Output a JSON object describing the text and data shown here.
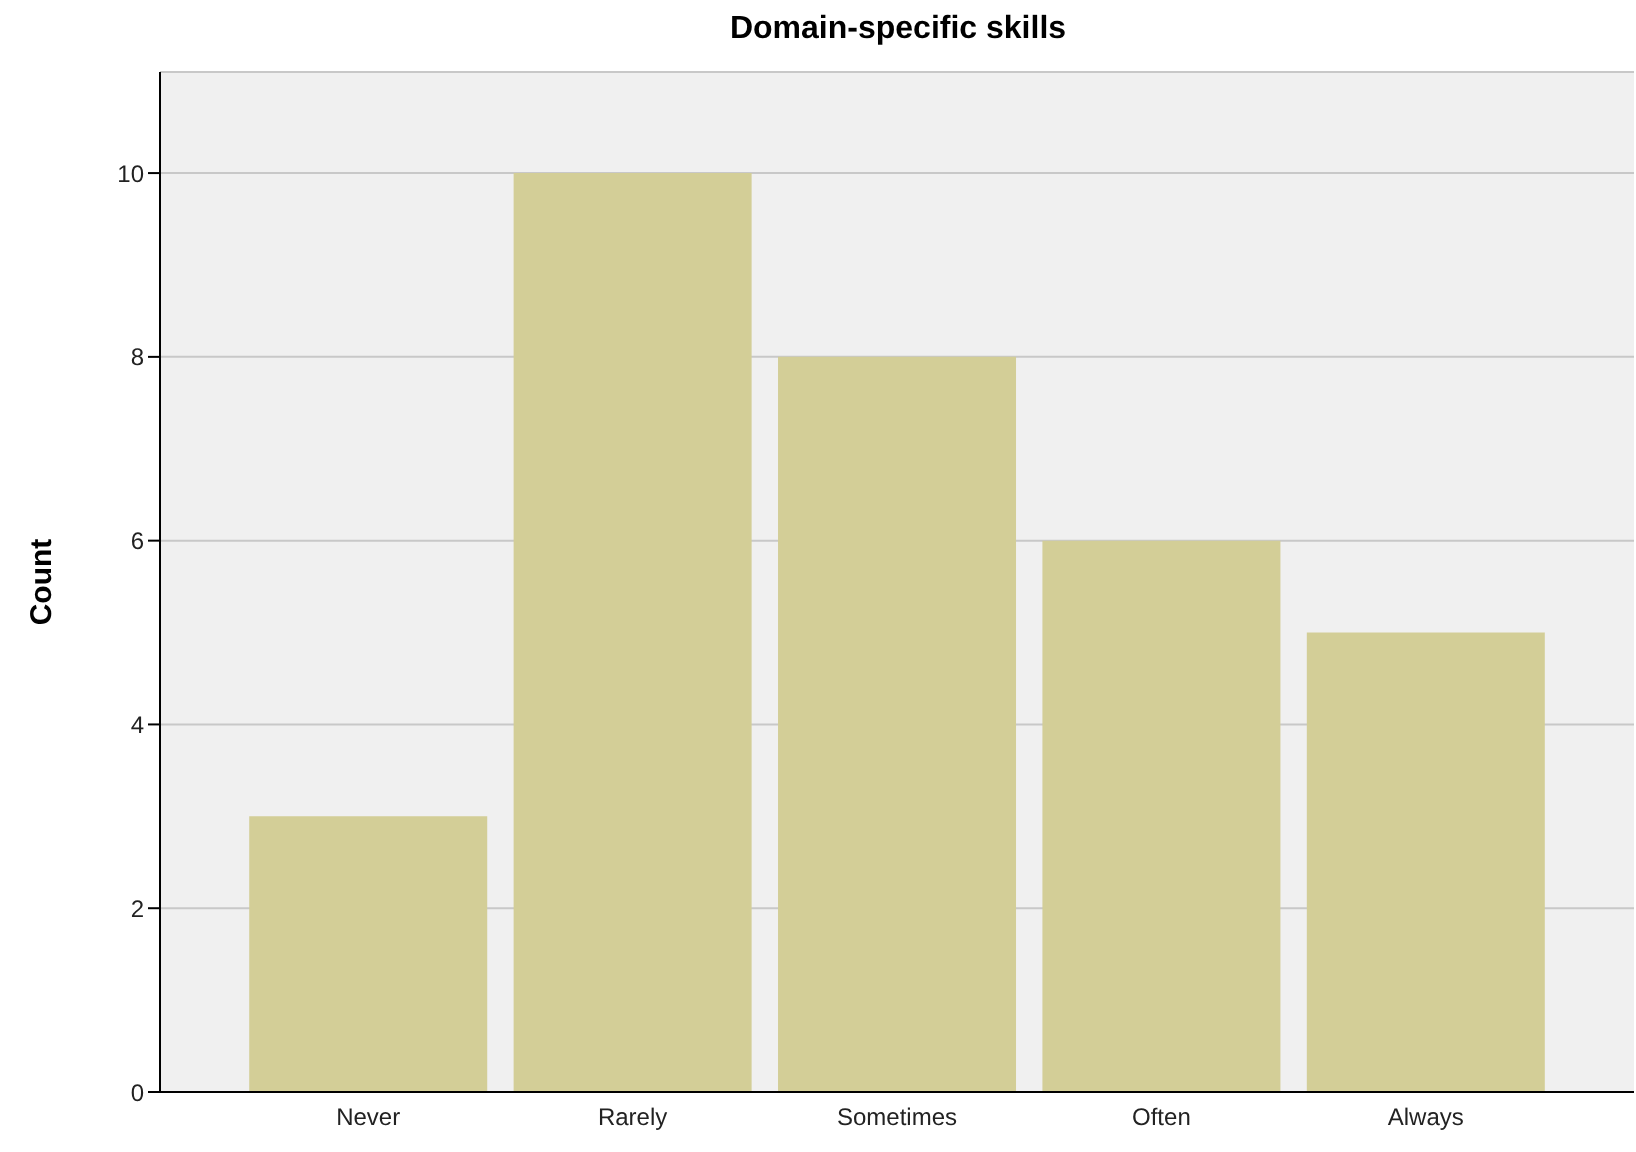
{
  "chart_data": {
    "type": "bar",
    "title": "Domain-specific skills",
    "ylabel": "Count",
    "categories": [
      "Never",
      "Rarely",
      "Sometimes",
      "Often",
      "Always"
    ],
    "values": [
      3,
      10,
      8,
      6,
      5
    ],
    "color": "#d3ce97",
    "ylim": [
      0,
      11.1
    ],
    "yticks": [
      0,
      2,
      4,
      6,
      8,
      10
    ],
    "grid": "y",
    "legend": false
  }
}
